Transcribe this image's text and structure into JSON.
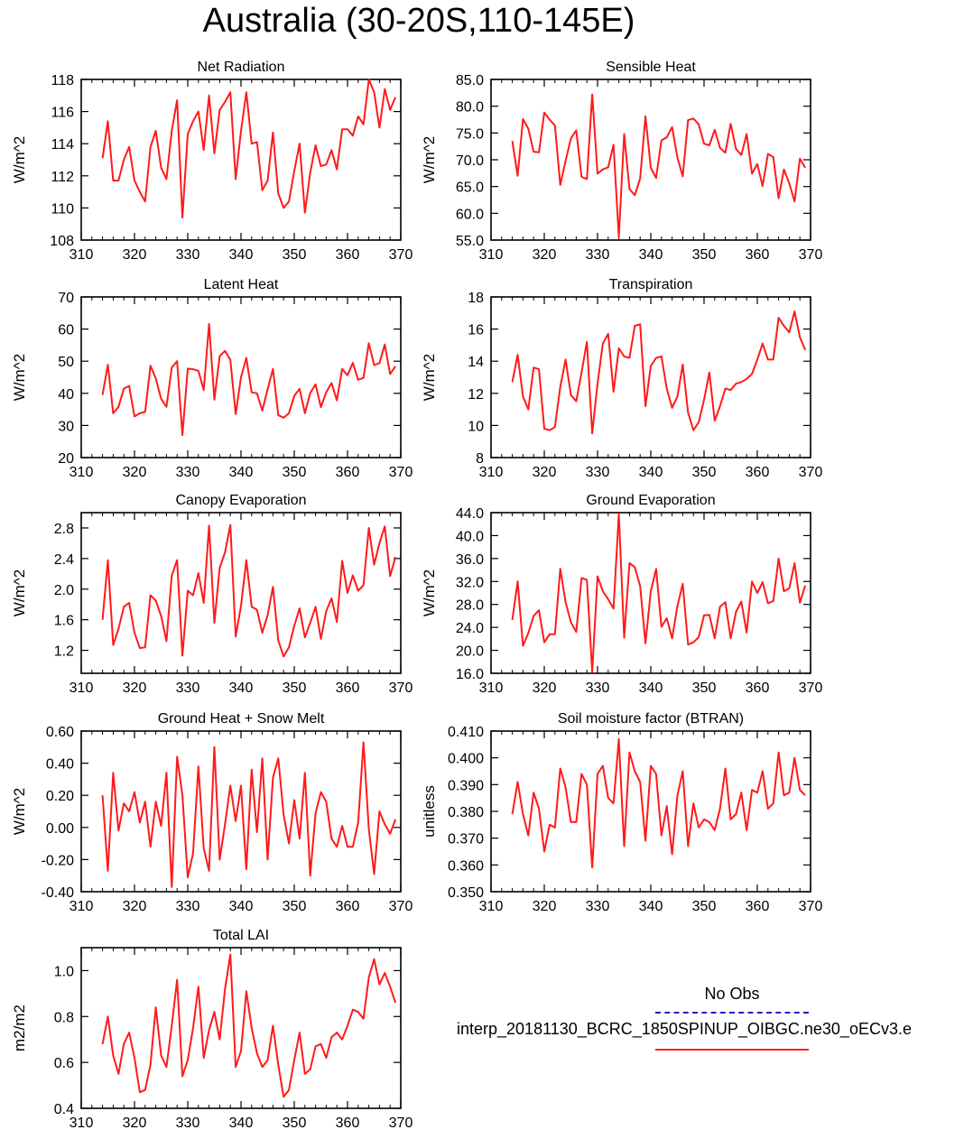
{
  "title": "Australia (30-20S,110-145E)",
  "colors": {
    "model_line": "#ff1a1a",
    "obs_line": "#1f1fc0",
    "axis": "#000000"
  },
  "legend": {
    "obs_label": "No Obs",
    "model_label": "interp_20181130_BCRC_1850SPINUP_OIBGC.ne30_oECv3.e"
  },
  "chart_data": [
    {
      "type": "line",
      "title": "Net Radiation",
      "ylabel": "W/m^2",
      "xlabel": "",
      "xlim": [
        310,
        370
      ],
      "ylim": [
        108,
        118
      ],
      "xticks": [
        310,
        320,
        330,
        340,
        350,
        360,
        370
      ],
      "yticks": [
        108,
        110,
        112,
        114,
        116,
        118
      ],
      "ytick_labels": [
        "108",
        "110",
        "112",
        "114",
        "116",
        "118"
      ],
      "x_start": 314,
      "values": [
        113.1,
        115.4,
        111.7,
        111.7,
        113.0,
        113.8,
        111.7,
        111.0,
        110.4,
        113.8,
        114.8,
        112.5,
        111.8,
        114.8,
        116.7,
        109.4,
        114.6,
        115.4,
        116.0,
        113.6,
        117.0,
        113.4,
        116.1,
        116.6,
        117.2,
        111.8,
        114.8,
        117.2,
        114.0,
        114.1,
        111.1,
        111.7,
        114.7,
        110.9,
        110.0,
        110.4,
        112.3,
        114.0,
        109.7,
        112.2,
        113.9,
        112.6,
        112.7,
        113.6,
        112.4,
        114.9,
        114.9,
        114.5,
        115.7,
        115.2,
        118.0,
        117.2,
        115.0,
        117.4,
        116.1,
        116.9
      ]
    },
    {
      "type": "line",
      "title": "Sensible Heat",
      "ylabel": "W/m^2",
      "xlabel": "",
      "xlim": [
        310,
        370
      ],
      "ylim": [
        55,
        85
      ],
      "xticks": [
        310,
        320,
        330,
        340,
        350,
        360,
        370
      ],
      "yticks": [
        55,
        60,
        65,
        70,
        75,
        80,
        85
      ],
      "ytick_labels": [
        "55.0",
        "60.0",
        "65.0",
        "70.0",
        "75.0",
        "80.0",
        "85.0"
      ],
      "x_start": 314,
      "values": [
        73.5,
        67.0,
        77.6,
        75.8,
        71.5,
        71.4,
        78.8,
        77.5,
        76.4,
        65.3,
        69.8,
        74.0,
        75.5,
        66.8,
        66.4,
        82.2,
        67.4,
        68.2,
        68.6,
        72.8,
        55.6,
        74.8,
        64.5,
        63.4,
        66.5,
        78.1,
        68.5,
        66.6,
        73.6,
        74.2,
        76.1,
        70.4,
        66.9,
        77.4,
        77.7,
        76.6,
        73.0,
        72.7,
        75.6,
        72.2,
        71.3,
        76.7,
        72.0,
        70.9,
        74.8,
        67.4,
        69.2,
        65.1,
        71.1,
        70.5,
        62.8,
        68.2,
        65.6,
        62.2,
        70.2,
        68.5
      ]
    },
    {
      "type": "line",
      "title": "Latent Heat",
      "ylabel": "W/m^2",
      "xlabel": "",
      "xlim": [
        310,
        370
      ],
      "ylim": [
        20,
        70
      ],
      "xticks": [
        310,
        320,
        330,
        340,
        350,
        360,
        370
      ],
      "yticks": [
        20,
        30,
        40,
        50,
        60,
        70
      ],
      "ytick_labels": [
        "20",
        "30",
        "40",
        "50",
        "60",
        "70"
      ],
      "x_start": 314,
      "values": [
        39.5,
        48.9,
        33.8,
        35.8,
        41.5,
        42.3,
        32.8,
        33.8,
        34.2,
        48.6,
        44.6,
        38.3,
        35.8,
        48.0,
        50.0,
        27.0,
        47.7,
        47.5,
        47.0,
        41.0,
        61.6,
        38.0,
        51.6,
        53.2,
        50.4,
        33.5,
        45.0,
        51.0,
        40.3,
        40.0,
        34.6,
        41.3,
        47.6,
        33.2,
        32.4,
        33.8,
        39.2,
        41.4,
        33.8,
        40.1,
        42.8,
        35.7,
        40.3,
        43.2,
        37.8,
        47.6,
        45.6,
        49.5,
        44.2,
        44.8,
        55.6,
        48.8,
        49.4,
        55.2,
        46.0,
        48.4
      ]
    },
    {
      "type": "line",
      "title": "Transpiration",
      "ylabel": "W/m^2",
      "xlabel": "",
      "xlim": [
        310,
        370
      ],
      "ylim": [
        8,
        18
      ],
      "xticks": [
        310,
        320,
        330,
        340,
        350,
        360,
        370
      ],
      "yticks": [
        8,
        10,
        12,
        14,
        16,
        18
      ],
      "ytick_labels": [
        "8",
        "10",
        "12",
        "14",
        "16",
        "18"
      ],
      "x_start": 314,
      "values": [
        12.7,
        14.4,
        11.8,
        11.0,
        13.6,
        13.5,
        9.8,
        9.7,
        9.9,
        12.4,
        14.1,
        11.9,
        11.5,
        13.3,
        15.2,
        9.5,
        12.6,
        15.1,
        15.7,
        12.1,
        14.8,
        14.3,
        14.2,
        16.2,
        16.3,
        11.2,
        13.7,
        14.2,
        14.3,
        12.3,
        11.1,
        11.8,
        13.8,
        10.8,
        9.7,
        10.2,
        11.6,
        13.3,
        10.3,
        11.2,
        12.3,
        12.2,
        12.6,
        12.7,
        12.9,
        13.2,
        14.1,
        15.1,
        14.1,
        14.1,
        16.7,
        16.2,
        15.8,
        17.1,
        15.5,
        14.7
      ]
    },
    {
      "type": "line",
      "title": "Canopy Evaporation",
      "ylabel": "W/m^2",
      "xlabel": "",
      "xlim": [
        310,
        370
      ],
      "ylim": [
        0.9,
        3.0
      ],
      "xticks": [
        310,
        320,
        330,
        340,
        350,
        360,
        370
      ],
      "yticks": [
        1.2,
        1.6,
        2.0,
        2.4,
        2.8
      ],
      "ytick_labels": [
        "1.2",
        "1.6",
        "2.0",
        "2.4",
        "2.8"
      ],
      "x_start": 314,
      "values": [
        1.6,
        2.38,
        1.27,
        1.48,
        1.77,
        1.82,
        1.43,
        1.23,
        1.24,
        1.92,
        1.85,
        1.65,
        1.32,
        2.18,
        2.38,
        1.13,
        1.98,
        1.92,
        2.21,
        1.82,
        2.83,
        1.56,
        2.28,
        2.48,
        2.84,
        1.38,
        1.78,
        2.38,
        1.77,
        1.73,
        1.43,
        1.66,
        2.03,
        1.33,
        1.12,
        1.24,
        1.52,
        1.75,
        1.37,
        1.56,
        1.77,
        1.35,
        1.71,
        1.88,
        1.57,
        2.37,
        1.95,
        2.18,
        1.98,
        2.05,
        2.8,
        2.32,
        2.6,
        2.82,
        2.17,
        2.42
      ]
    },
    {
      "type": "line",
      "title": "Ground Evaporation",
      "ylabel": "W/m^2",
      "xlabel": "",
      "xlim": [
        310,
        370
      ],
      "ylim": [
        16,
        44
      ],
      "xticks": [
        310,
        320,
        330,
        340,
        350,
        360,
        370
      ],
      "yticks": [
        16,
        20,
        24,
        28,
        32,
        36,
        40,
        44
      ],
      "ytick_labels": [
        "16.0",
        "20.0",
        "24.0",
        "28.0",
        "32.0",
        "36.0",
        "40.0",
        "44.0"
      ],
      "x_start": 314,
      "values": [
        25.3,
        32.0,
        20.8,
        23.0,
        26.0,
        27.0,
        21.4,
        22.8,
        22.8,
        34.2,
        28.4,
        24.9,
        23.2,
        32.6,
        32.3,
        16.2,
        32.9,
        30.3,
        28.9,
        27.3,
        43.8,
        22.2,
        35.2,
        34.5,
        31.2,
        21.2,
        30.3,
        34.2,
        24.1,
        25.6,
        22.1,
        27.7,
        31.6,
        21.0,
        21.4,
        22.3,
        26.1,
        26.2,
        22.1,
        27.6,
        28.4,
        22.1,
        26.7,
        28.5,
        23.1,
        32.0,
        30.0,
        31.9,
        28.2,
        28.6,
        36.0,
        30.3,
        30.8,
        35.2,
        28.3,
        31.3
      ]
    },
    {
      "type": "line",
      "title": "Ground Heat + Snow Melt",
      "ylabel": "W/m^2",
      "xlabel": "",
      "xlim": [
        310,
        370
      ],
      "ylim": [
        -0.4,
        0.6
      ],
      "xticks": [
        310,
        320,
        330,
        340,
        350,
        360,
        370
      ],
      "yticks": [
        -0.4,
        -0.2,
        0.0,
        0.2,
        0.4,
        0.6
      ],
      "ytick_labels": [
        "-0.40",
        "-0.20",
        "0.00",
        "0.20",
        "0.40",
        "0.60"
      ],
      "x_start": 314,
      "values": [
        0.2,
        -0.27,
        0.34,
        -0.02,
        0.15,
        0.1,
        0.22,
        0.03,
        0.16,
        -0.12,
        0.16,
        0.01,
        0.34,
        -0.37,
        0.44,
        0.2,
        -0.31,
        -0.16,
        0.38,
        -0.13,
        -0.27,
        0.5,
        -0.2,
        0.02,
        0.26,
        0.04,
        0.26,
        -0.26,
        0.36,
        -0.03,
        0.43,
        -0.2,
        0.31,
        0.43,
        0.08,
        -0.1,
        0.17,
        -0.07,
        0.34,
        -0.3,
        0.09,
        0.22,
        0.16,
        -0.07,
        -0.12,
        0.01,
        -0.12,
        -0.12,
        0.03,
        0.53,
        -0.01,
        -0.29,
        0.1,
        0.02,
        -0.04,
        0.05
      ]
    },
    {
      "type": "line",
      "title": "Soil moisture factor (BTRAN)",
      "ylabel": "unitless",
      "xlabel": "",
      "xlim": [
        310,
        370
      ],
      "ylim": [
        0.35,
        0.41
      ],
      "xticks": [
        310,
        320,
        330,
        340,
        350,
        360,
        370
      ],
      "yticks": [
        0.35,
        0.36,
        0.37,
        0.38,
        0.39,
        0.4,
        0.41
      ],
      "ytick_labels": [
        "0.350",
        "0.360",
        "0.370",
        "0.380",
        "0.390",
        "0.400",
        "0.410"
      ],
      "x_start": 314,
      "values": [
        0.379,
        0.391,
        0.379,
        0.371,
        0.387,
        0.381,
        0.365,
        0.375,
        0.374,
        0.396,
        0.389,
        0.376,
        0.376,
        0.394,
        0.39,
        0.359,
        0.394,
        0.397,
        0.385,
        0.383,
        0.407,
        0.367,
        0.402,
        0.395,
        0.391,
        0.369,
        0.397,
        0.394,
        0.371,
        0.382,
        0.364,
        0.386,
        0.395,
        0.367,
        0.383,
        0.374,
        0.377,
        0.376,
        0.373,
        0.381,
        0.396,
        0.377,
        0.379,
        0.387,
        0.373,
        0.388,
        0.387,
        0.395,
        0.381,
        0.383,
        0.402,
        0.386,
        0.387,
        0.4,
        0.388,
        0.386
      ]
    },
    {
      "type": "line",
      "title": "Total LAI",
      "ylabel": "m2/m2",
      "xlabel": "",
      "xlim": [
        310,
        370
      ],
      "ylim": [
        0.4,
        1.1
      ],
      "xticks": [
        310,
        320,
        330,
        340,
        350,
        360,
        370
      ],
      "yticks": [
        0.4,
        0.6,
        0.8,
        1.0
      ],
      "ytick_labels": [
        "0.4",
        "0.6",
        "0.8",
        "1.0"
      ],
      "x_start": 314,
      "values": [
        0.68,
        0.8,
        0.63,
        0.55,
        0.68,
        0.73,
        0.62,
        0.47,
        0.48,
        0.59,
        0.84,
        0.63,
        0.58,
        0.76,
        0.96,
        0.54,
        0.61,
        0.75,
        0.93,
        0.62,
        0.74,
        0.82,
        0.7,
        0.92,
        1.07,
        0.58,
        0.65,
        0.91,
        0.75,
        0.64,
        0.58,
        0.61,
        0.76,
        0.59,
        0.45,
        0.48,
        0.61,
        0.73,
        0.55,
        0.57,
        0.67,
        0.68,
        0.62,
        0.71,
        0.73,
        0.7,
        0.76,
        0.83,
        0.82,
        0.79,
        0.97,
        1.05,
        0.94,
        0.99,
        0.93,
        0.86
      ]
    }
  ]
}
